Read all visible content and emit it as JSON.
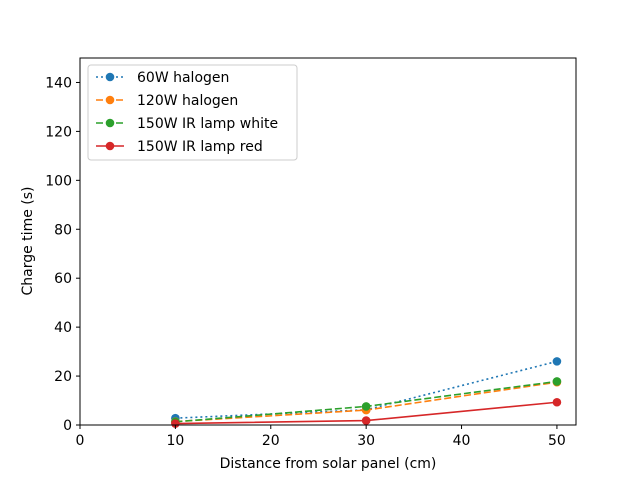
{
  "chart_data": {
    "type": "line",
    "title": "",
    "xlabel": "Distance from solar panel (cm)",
    "ylabel": "Charge time (s)",
    "xlim": [
      0,
      52
    ],
    "ylim": [
      0,
      150
    ],
    "xticks": [
      0,
      10,
      20,
      30,
      40,
      50
    ],
    "yticks": [
      0,
      20,
      40,
      60,
      80,
      100,
      120,
      140
    ],
    "grid": false,
    "legend_position": "top-left",
    "x": [
      10,
      30,
      50
    ],
    "series": [
      {
        "name": "60W halogen",
        "values": [
          2.8,
          6.2,
          26.0
        ],
        "color": "#1f77b4",
        "line_style": "dotted",
        "marker": "circle"
      },
      {
        "name": "120W halogen",
        "values": [
          1.4,
          6.1,
          17.5
        ],
        "color": "#ff7f0e",
        "line_style": "dashed",
        "marker": "circle"
      },
      {
        "name": "150W IR lamp white",
        "values": [
          1.3,
          7.6,
          17.8
        ],
        "color": "#2ca02c",
        "line_style": "dashed",
        "marker": "circle"
      },
      {
        "name": "150W IR lamp red",
        "values": [
          0.6,
          1.8,
          9.3
        ],
        "color": "#d62728",
        "line_style": "solid",
        "marker": "circle"
      }
    ]
  }
}
